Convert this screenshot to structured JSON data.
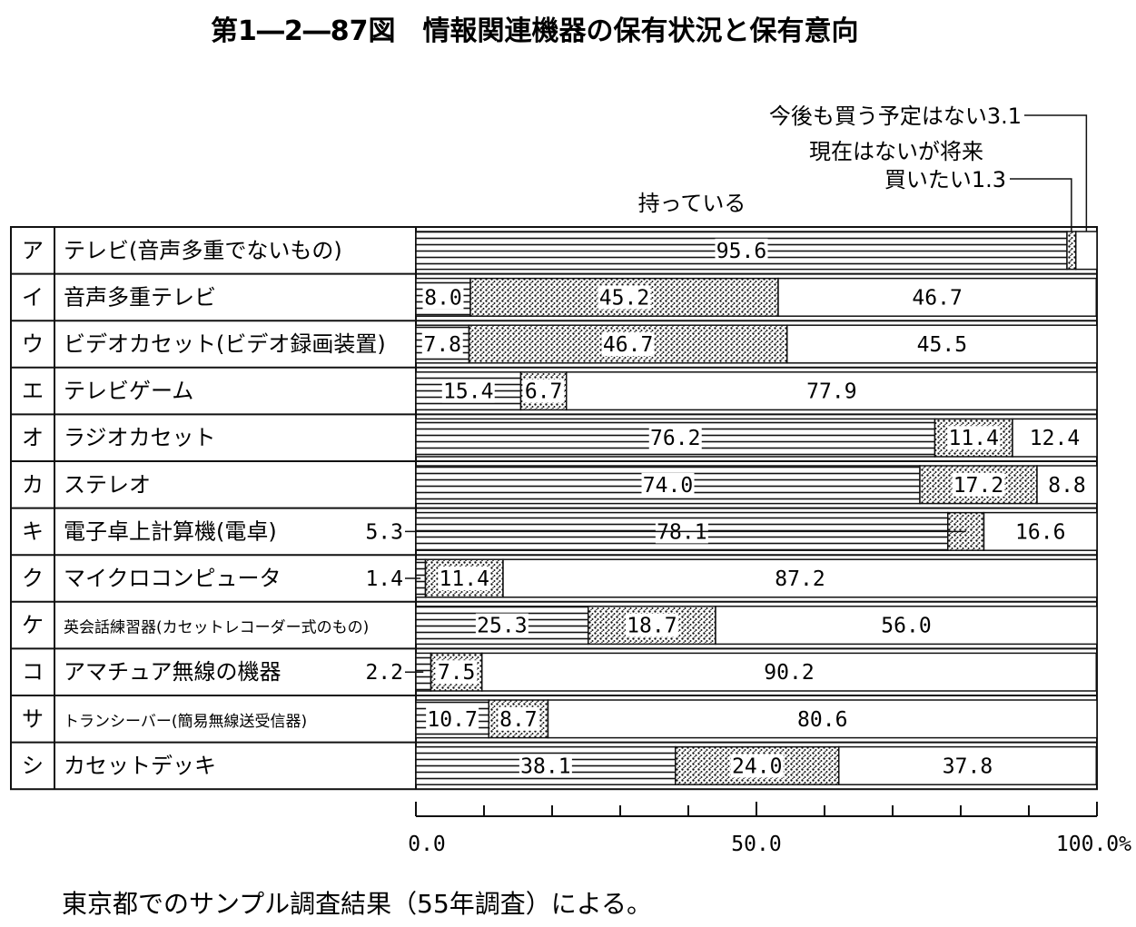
{
  "title": "第1―2―87図　情報関連機器の保有状況と保有意向",
  "legend": {
    "have": "持っている",
    "want_line1": "現在はないが将来",
    "want_line2": "買いたい1.3",
    "no_plan": "今後も買う予定はない3.1"
  },
  "axis": {
    "ticks": [
      "0.0",
      "50.0",
      "100.0%"
    ]
  },
  "note": "東京都でのサンプル調査結果（55年調査）による。",
  "chart_data": {
    "type": "bar",
    "stacked": true,
    "orientation": "horizontal",
    "xlim": [
      0,
      100
    ],
    "categories": [
      {
        "key": "ア",
        "label": "テレビ(音声多重でないもの)"
      },
      {
        "key": "イ",
        "label": "音声多重テレビ"
      },
      {
        "key": "ウ",
        "label": "ビデオカセット(ビデオ録画装置)"
      },
      {
        "key": "エ",
        "label": "テレビゲーム"
      },
      {
        "key": "オ",
        "label": "ラジオカセット"
      },
      {
        "key": "カ",
        "label": "ステレオ"
      },
      {
        "key": "キ",
        "label": "電子卓上計算機(電卓)"
      },
      {
        "key": "ク",
        "label": "マイクロコンピュータ"
      },
      {
        "key": "ケ",
        "label": "英会話練習器(カセットレコーダー式のもの)"
      },
      {
        "key": "コ",
        "label": "アマチュア無線の機器"
      },
      {
        "key": "サ",
        "label": "トランシーバー(簡易無線送受信器)"
      },
      {
        "key": "シ",
        "label": "カセットデッキ"
      }
    ],
    "series": [
      {
        "name": "持っている",
        "values": [
          95.6,
          8.0,
          7.8,
          15.4,
          76.2,
          74.0,
          78.1,
          1.4,
          25.3,
          2.2,
          10.7,
          38.1
        ]
      },
      {
        "name": "現在はないが将来買いたい",
        "values": [
          1.3,
          45.2,
          46.7,
          6.7,
          11.4,
          17.2,
          5.3,
          11.4,
          18.7,
          7.5,
          8.7,
          24.0
        ]
      },
      {
        "name": "今後も買う予定はない",
        "values": [
          3.1,
          46.7,
          45.5,
          77.9,
          12.4,
          8.8,
          16.6,
          87.2,
          56.0,
          90.2,
          80.6,
          37.8
        ]
      }
    ],
    "value_labels": [
      [
        "95.6",
        "",
        ""
      ],
      [
        "8.0",
        "45.2",
        "46.7"
      ],
      [
        "7.8",
        "46.7",
        "45.5"
      ],
      [
        "15.4",
        "6.7",
        "77.9"
      ],
      [
        "76.2",
        "11.4",
        "12.4"
      ],
      [
        "74.0",
        "17.2",
        "8.8"
      ],
      [
        "78.1",
        "5.3",
        "16.6"
      ],
      [
        "1.4",
        "11.4",
        "87.2"
      ],
      [
        "25.3",
        "18.7",
        "56.0"
      ],
      [
        "2.2",
        "7.5",
        "90.2"
      ],
      [
        "10.7",
        "8.7",
        "80.6"
      ],
      [
        "38.1",
        "24.0",
        "37.8"
      ]
    ]
  }
}
